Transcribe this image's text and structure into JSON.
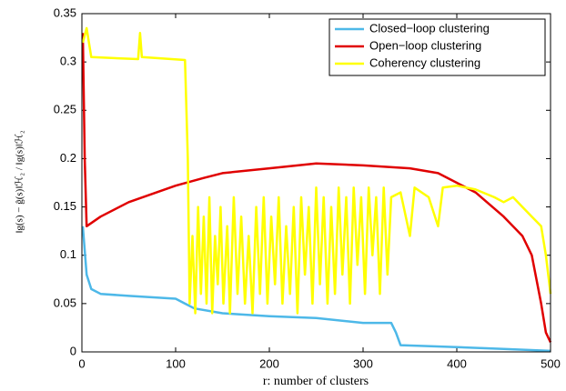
{
  "chart_data": {
    "type": "line",
    "x_label": "r: number of clusters",
    "y_label": "‖g(s) − ĝ(s)‖ℋ₂ / ‖g(s)‖ℋ₂",
    "xlim": [
      0,
      500
    ],
    "xticks": [
      0,
      100,
      200,
      300,
      400,
      500
    ],
    "ylim": [
      0,
      0.35
    ],
    "yticks": [
      0,
      0.05,
      0.1,
      0.15,
      0.2,
      0.25,
      0.3,
      0.35
    ],
    "legend": "upper right",
    "series": [
      {
        "name": "Closed−loop clustering",
        "color": "#4db8e8",
        "x": [
          1,
          5,
          10,
          20,
          50,
          100,
          110,
          120,
          150,
          200,
          250,
          300,
          330,
          335,
          340,
          400,
          450,
          500
        ],
        "values": [
          0.13,
          0.08,
          0.065,
          0.06,
          0.058,
          0.055,
          0.05,
          0.045,
          0.04,
          0.037,
          0.035,
          0.03,
          0.03,
          0.02,
          0.007,
          0.005,
          0.003,
          0.001
        ]
      },
      {
        "name": "Open−loop clustering",
        "color": "#e00000",
        "x": [
          1,
          3,
          5,
          20,
          50,
          100,
          130,
          150,
          200,
          250,
          300,
          350,
          380,
          400,
          420,
          450,
          470,
          480,
          490,
          495,
          500
        ],
        "values": [
          0.33,
          0.2,
          0.13,
          0.14,
          0.155,
          0.172,
          0.18,
          0.185,
          0.19,
          0.195,
          0.193,
          0.19,
          0.185,
          0.175,
          0.165,
          0.14,
          0.12,
          0.1,
          0.05,
          0.02,
          0.01
        ]
      },
      {
        "name": "Coherency clustering",
        "color": "#ffff00",
        "x": [
          1,
          5,
          10,
          60,
          62,
          64,
          110,
          113,
          115,
          118,
          121,
          124,
          127,
          130,
          133,
          136,
          139,
          142,
          145,
          148,
          151,
          155,
          158,
          162,
          166,
          170,
          174,
          178,
          182,
          186,
          190,
          194,
          198,
          202,
          206,
          210,
          214,
          218,
          222,
          226,
          230,
          234,
          238,
          242,
          246,
          250,
          254,
          258,
          262,
          266,
          270,
          274,
          278,
          282,
          286,
          290,
          294,
          298,
          302,
          306,
          310,
          314,
          318,
          322,
          326,
          330,
          340,
          350,
          355,
          370,
          380,
          385,
          400,
          420,
          440,
          450,
          460,
          470,
          480,
          490,
          495,
          500
        ],
        "values": [
          0.32,
          0.335,
          0.305,
          0.303,
          0.33,
          0.305,
          0.302,
          0.2,
          0.05,
          0.12,
          0.04,
          0.15,
          0.06,
          0.14,
          0.05,
          0.16,
          0.04,
          0.12,
          0.07,
          0.15,
          0.05,
          0.13,
          0.04,
          0.16,
          0.06,
          0.14,
          0.05,
          0.12,
          0.04,
          0.15,
          0.06,
          0.16,
          0.05,
          0.14,
          0.07,
          0.16,
          0.05,
          0.13,
          0.06,
          0.15,
          0.04,
          0.16,
          0.08,
          0.15,
          0.05,
          0.17,
          0.07,
          0.16,
          0.05,
          0.15,
          0.06,
          0.17,
          0.08,
          0.16,
          0.05,
          0.17,
          0.09,
          0.16,
          0.06,
          0.17,
          0.1,
          0.16,
          0.06,
          0.17,
          0.08,
          0.16,
          0.165,
          0.12,
          0.17,
          0.16,
          0.13,
          0.17,
          0.172,
          0.168,
          0.16,
          0.155,
          0.16,
          0.15,
          0.14,
          0.13,
          0.1,
          0.06
        ]
      }
    ]
  }
}
